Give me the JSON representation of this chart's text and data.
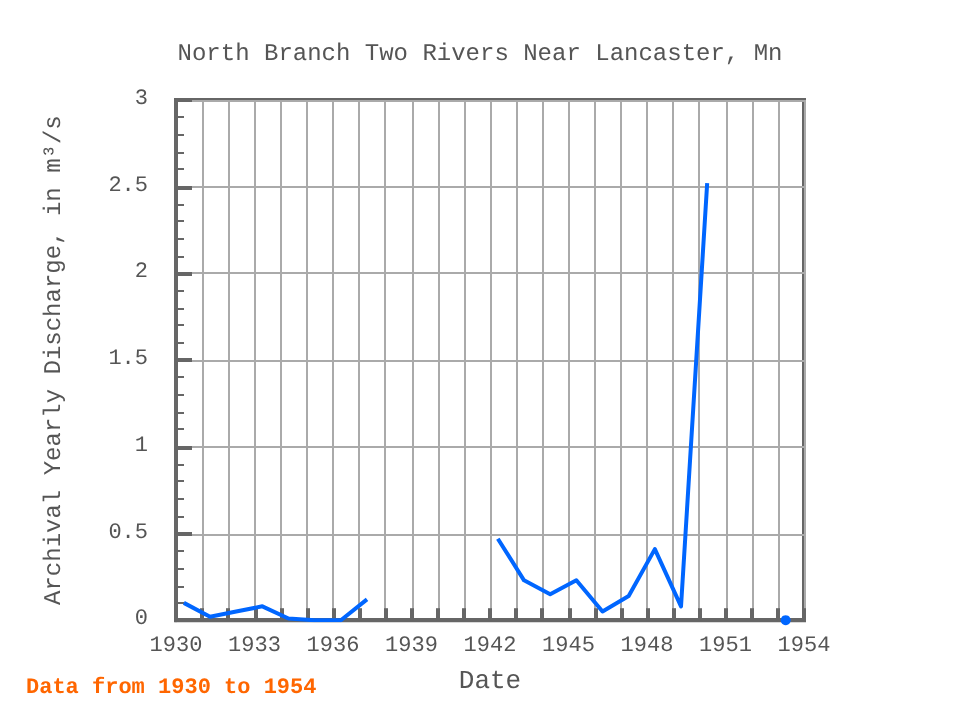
{
  "chart_data": {
    "type": "line",
    "title": "North Branch Two Rivers Near Lancaster, Mn",
    "xlabel": "Date",
    "ylabel": "Archival Yearly Discharge, in m³/s",
    "annotations": [
      "Data from 1930 to 1954"
    ],
    "x": [
      1930.3,
      1931.3,
      1932.3,
      1933.3,
      1934.3,
      1935.3,
      1936.3,
      1937.3,
      1938.3,
      1942.3,
      1943.3,
      1944.3,
      1945.3,
      1946.3,
      1947.3,
      1948.3,
      1949.3,
      1950.3,
      1951.3,
      1953.3
    ],
    "series": [
      {
        "color": "#0066ff",
        "values": [
          0.1,
          0.02,
          0.05,
          0.08,
          0.01,
          0,
          0,
          0.12,
          null,
          0.47,
          0.23,
          0.15,
          0.23,
          0.05,
          0.14,
          0.41,
          0.08,
          2.52,
          null,
          0
        ]
      }
    ],
    "xlim": [
      1930,
      1954
    ],
    "xticks": [
      1930,
      {
        "value": 1931,
        "label": null
      },
      {
        "value": 1932,
        "label": null
      },
      1933,
      {
        "value": 1934,
        "label": null
      },
      {
        "value": 1935,
        "label": null
      },
      1936,
      {
        "value": 1937,
        "label": null
      },
      {
        "value": 1938,
        "label": null
      },
      1939,
      {
        "value": 1940,
        "label": null
      },
      {
        "value": 1941,
        "label": null
      },
      1942,
      {
        "value": 1943,
        "label": null
      },
      {
        "value": 1944,
        "label": null
      },
      1945,
      {
        "value": 1946,
        "label": null
      },
      {
        "value": 1947,
        "label": null
      },
      1948,
      {
        "value": 1949,
        "label": null
      },
      {
        "value": 1950,
        "label": null
      },
      1951,
      {
        "value": 1952,
        "label": null
      },
      {
        "value": 1953,
        "label": null
      },
      1954
    ],
    "ylim": [
      0,
      3
    ],
    "yticks": [
      0,
      0.5,
      1,
      1.5,
      2,
      2.5,
      3
    ],
    "grid": true,
    "marker": "none",
    "line_style": "solid"
  }
}
